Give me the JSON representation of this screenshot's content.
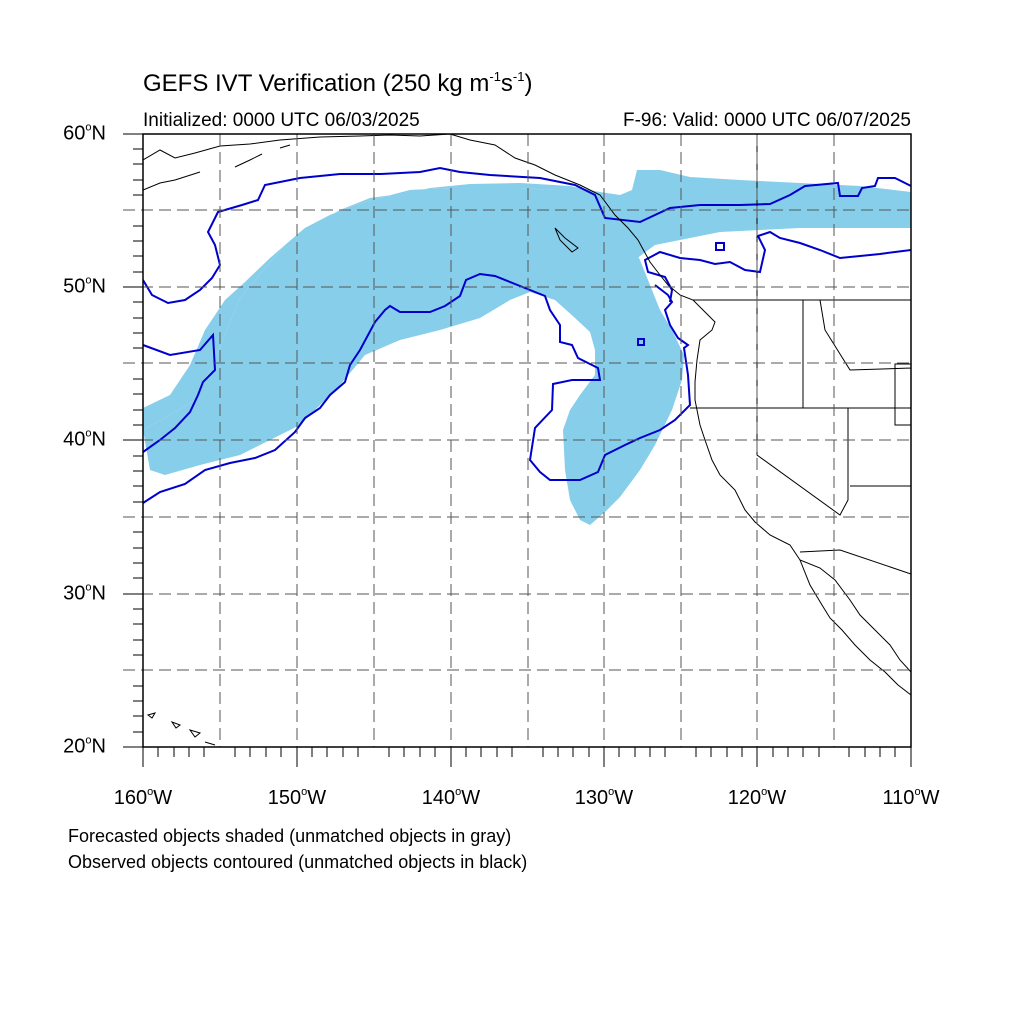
{
  "title": {
    "main": "GEFS IVT Verification (250 kg m",
    "sup1": "-1",
    "mid": "s",
    "sup2": "-1",
    "end": ")"
  },
  "subtitle_left": "Initialized: 0000 UTC 06/03/2025",
  "subtitle_right": "F-96: Valid: 0000 UTC 06/07/2025",
  "lat_labels": [
    {
      "num": "60",
      "hem": "N"
    },
    {
      "num": "50",
      "hem": "N"
    },
    {
      "num": "40",
      "hem": "N"
    },
    {
      "num": "30",
      "hem": "N"
    },
    {
      "num": "20",
      "hem": "N"
    }
  ],
  "lon_labels": [
    {
      "num": "160",
      "hem": "W"
    },
    {
      "num": "150",
      "hem": "W"
    },
    {
      "num": "140",
      "hem": "W"
    },
    {
      "num": "130",
      "hem": "W"
    },
    {
      "num": "120",
      "hem": "W"
    },
    {
      "num": "110",
      "hem": "W"
    }
  ],
  "notes": [
    "Forecasted objects shaded (unmatched objects in gray)",
    "Observed objects contoured (unmatched objects in black)"
  ],
  "colors": {
    "forecast_fill": "#87ceeb",
    "observed_contour": "#0000cd",
    "coastline": "#000000",
    "grid": "#555555"
  }
}
